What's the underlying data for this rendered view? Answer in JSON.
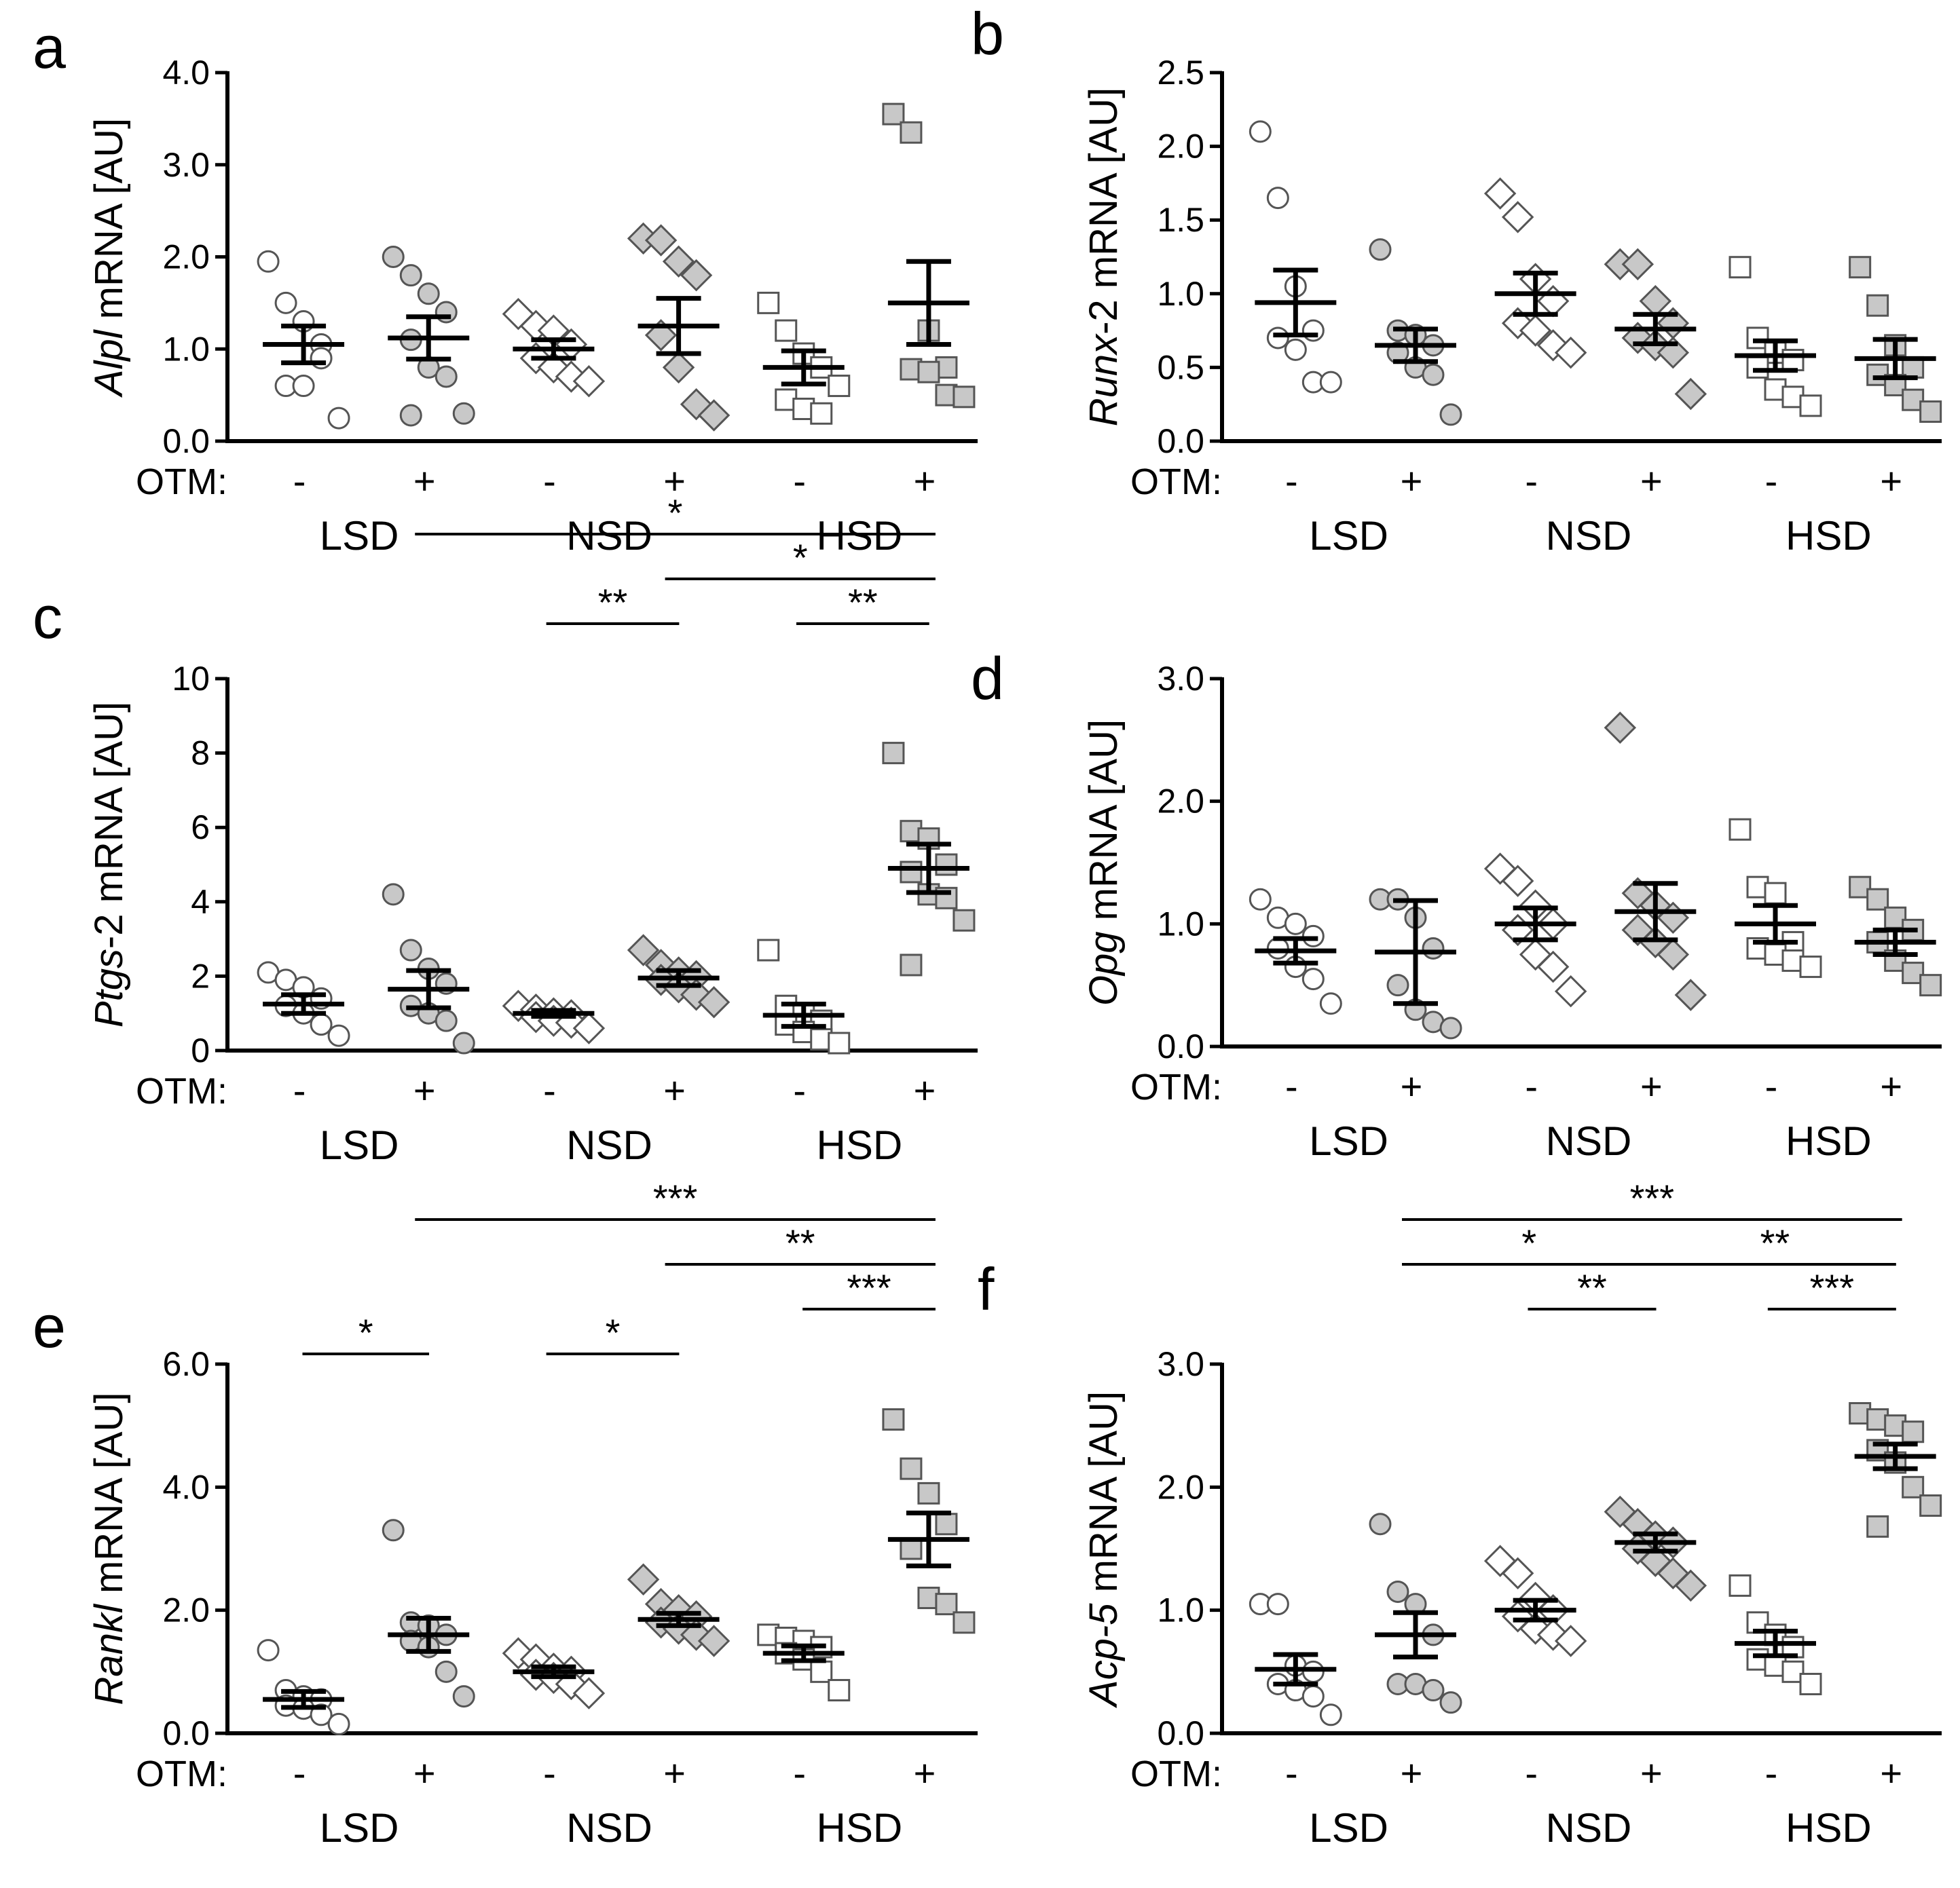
{
  "otm_label": "OTM:",
  "otm_signs": [
    "-",
    "+",
    "-",
    "+",
    "-",
    "+"
  ],
  "groups": [
    "LSD",
    "NSD",
    "HSD"
  ],
  "colors": {
    "open_fill": "#ffffff",
    "filled_fill": "#c8c8c8",
    "stroke": "#555555",
    "bar": "#000000"
  },
  "marker_by_group": [
    "circle",
    "diamond",
    "square"
  ],
  "chart_data": [
    {
      "id": "a",
      "type": "scatter",
      "letter": "a",
      "ylabel_italic": "Alpl",
      "ylabel_rest": " mRNA [AU]",
      "ylim": [
        0,
        4
      ],
      "yticks": [
        0,
        1,
        2,
        3,
        4
      ],
      "yticklabels": [
        "0.0",
        "1.0",
        "2.0",
        "3.0",
        "4.0"
      ],
      "series": [
        {
          "name": "LSD -",
          "points": [
            1.95,
            1.5,
            1.3,
            1.05,
            0.6,
            0.6,
            0.9,
            0.25
          ],
          "mean": 1.05,
          "sem": 0.2
        },
        {
          "name": "LSD +",
          "points": [
            2.0,
            1.8,
            1.6,
            1.4,
            1.1,
            0.8,
            0.7,
            0.3,
            0.28
          ],
          "mean": 1.12,
          "sem": 0.23
        },
        {
          "name": "NSD -",
          "points": [
            1.38,
            1.25,
            1.2,
            1.05,
            0.9,
            0.8,
            0.7,
            0.65
          ],
          "mean": 1.0,
          "sem": 0.1
        },
        {
          "name": "NSD +",
          "points": [
            2.2,
            2.18,
            1.95,
            1.8,
            1.15,
            0.8,
            0.4,
            0.28
          ],
          "mean": 1.25,
          "sem": 0.3
        },
        {
          "name": "HSD -",
          "points": [
            1.5,
            1.2,
            0.95,
            0.8,
            0.45,
            0.35,
            0.3,
            0.6
          ],
          "mean": 0.8,
          "sem": 0.18
        },
        {
          "name": "HSD +",
          "points": [
            3.55,
            3.35,
            1.2,
            0.8,
            0.78,
            0.75,
            0.5,
            0.48
          ],
          "mean": 1.5,
          "sem": 0.45
        }
      ],
      "sig": []
    },
    {
      "id": "b",
      "type": "scatter",
      "letter": "b",
      "ylabel_italic": "Runx",
      "ylabel_rest": "-2 mRNA [AU]",
      "ylim": [
        0,
        2.5
      ],
      "yticks": [
        0,
        0.5,
        1,
        1.5,
        2,
        2.5
      ],
      "yticklabels": [
        "0.0",
        "0.5",
        "1.0",
        "1.5",
        "2.0",
        "2.5"
      ],
      "series": [
        {
          "name": "LSD -",
          "points": [
            2.1,
            1.65,
            1.05,
            0.75,
            0.7,
            0.62,
            0.4,
            0.4
          ],
          "mean": 0.94,
          "sem": 0.22
        },
        {
          "name": "LSD +",
          "points": [
            1.3,
            0.75,
            0.72,
            0.65,
            0.6,
            0.5,
            0.45,
            0.18
          ],
          "mean": 0.65,
          "sem": 0.11
        },
        {
          "name": "NSD -",
          "points": [
            1.68,
            1.52,
            1.1,
            0.95,
            0.8,
            0.75,
            0.65,
            0.6
          ],
          "mean": 1.0,
          "sem": 0.14
        },
        {
          "name": "NSD +",
          "points": [
            1.2,
            1.2,
            0.95,
            0.8,
            0.7,
            0.65,
            0.6,
            0.32
          ],
          "mean": 0.76,
          "sem": 0.1
        },
        {
          "name": "HSD -",
          "points": [
            1.18,
            0.7,
            0.6,
            0.55,
            0.5,
            0.35,
            0.3,
            0.24
          ],
          "mean": 0.58,
          "sem": 0.1
        },
        {
          "name": "HSD +",
          "points": [
            1.18,
            0.92,
            0.65,
            0.5,
            0.45,
            0.38,
            0.28,
            0.2
          ],
          "mean": 0.56,
          "sem": 0.13
        }
      ],
      "sig": []
    },
    {
      "id": "c",
      "type": "scatter",
      "letter": "c",
      "ylabel_italic": "Ptgs",
      "ylabel_rest": "-2 mRNA [AU]",
      "ylim": [
        0,
        10
      ],
      "yticks": [
        0,
        2,
        4,
        6,
        8,
        10
      ],
      "yticklabels": [
        "0",
        "2",
        "4",
        "6",
        "8",
        "10"
      ],
      "series": [
        {
          "name": "LSD -",
          "points": [
            2.1,
            1.9,
            1.7,
            1.4,
            1.2,
            1.0,
            0.7,
            0.4
          ],
          "mean": 1.25,
          "sem": 0.25
        },
        {
          "name": "LSD +",
          "points": [
            4.2,
            2.7,
            2.2,
            1.8,
            1.2,
            1.0,
            0.8,
            0.2
          ],
          "mean": 1.65,
          "sem": 0.5
        },
        {
          "name": "NSD -",
          "points": [
            1.2,
            1.1,
            1.0,
            0.95,
            0.9,
            0.8,
            0.75,
            0.6
          ],
          "mean": 1.0,
          "sem": 0.08
        },
        {
          "name": "NSD +",
          "points": [
            2.7,
            2.3,
            2.1,
            2.0,
            1.9,
            1.7,
            1.5,
            1.3
          ],
          "mean": 1.95,
          "sem": 0.2
        },
        {
          "name": "HSD -",
          "points": [
            2.7,
            1.2,
            1.0,
            0.8,
            0.7,
            0.5,
            0.3,
            0.2
          ],
          "mean": 0.95,
          "sem": 0.3
        },
        {
          "name": "HSD +",
          "points": [
            8.0,
            5.9,
            5.7,
            5.0,
            4.8,
            4.2,
            4.1,
            3.5,
            2.3
          ],
          "mean": 4.9,
          "sem": 0.65
        }
      ],
      "sig": [
        {
          "from": 1,
          "to": 5,
          "label": "*",
          "level": 4
        },
        {
          "from": 3,
          "to": 5,
          "label": "*",
          "level": 3
        },
        {
          "from": 2.05,
          "to": 2.95,
          "label": "**",
          "level": 2
        },
        {
          "from": 4.05,
          "to": 4.95,
          "label": "**",
          "level": 2
        }
      ]
    },
    {
      "id": "d",
      "type": "scatter",
      "letter": "d",
      "ylabel_italic": "Opg",
      "ylabel_rest": " mRNA [AU]",
      "ylim": [
        0,
        3
      ],
      "yticks": [
        0,
        1,
        2,
        3
      ],
      "yticklabels": [
        "0.0",
        "1.0",
        "2.0",
        "3.0"
      ],
      "series": [
        {
          "name": "LSD -",
          "points": [
            1.2,
            1.05,
            1.0,
            0.9,
            0.8,
            0.65,
            0.55,
            0.35
          ],
          "mean": 0.78,
          "sem": 0.1
        },
        {
          "name": "LSD +",
          "points": [
            1.2,
            1.2,
            1.05,
            0.8,
            0.5,
            0.3,
            0.2,
            0.15
          ],
          "mean": 0.77,
          "sem": 0.42
        },
        {
          "name": "NSD -",
          "points": [
            1.45,
            1.35,
            1.15,
            1.0,
            0.95,
            0.75,
            0.65,
            0.45
          ],
          "mean": 1.0,
          "sem": 0.13
        },
        {
          "name": "NSD +",
          "points": [
            2.6,
            1.25,
            1.15,
            1.05,
            0.95,
            0.85,
            0.75,
            0.42
          ],
          "mean": 1.1,
          "sem": 0.23
        },
        {
          "name": "HSD -",
          "points": [
            1.77,
            1.3,
            1.25,
            0.85,
            0.8,
            0.75,
            0.7,
            0.65
          ],
          "mean": 1.0,
          "sem": 0.15
        },
        {
          "name": "HSD +",
          "points": [
            1.3,
            1.2,
            1.05,
            0.95,
            0.85,
            0.7,
            0.6,
            0.5
          ],
          "mean": 0.85,
          "sem": 0.1
        }
      ],
      "sig": []
    },
    {
      "id": "e",
      "type": "scatter",
      "letter": "e",
      "ylabel_italic": "Rankl",
      "ylabel_rest": " mRNA [AU]",
      "ylim": [
        0,
        6
      ],
      "yticks": [
        0,
        2,
        4,
        6
      ],
      "yticklabels": [
        "0.0",
        "2.0",
        "4.0",
        "6.0"
      ],
      "series": [
        {
          "name": "LSD -",
          "points": [
            1.35,
            0.7,
            0.6,
            0.55,
            0.45,
            0.4,
            0.3,
            0.15
          ],
          "mean": 0.55,
          "sem": 0.13
        },
        {
          "name": "LSD +",
          "points": [
            3.3,
            1.8,
            1.75,
            1.6,
            1.5,
            1.4,
            1.0,
            0.6
          ],
          "mean": 1.6,
          "sem": 0.27
        },
        {
          "name": "NSD -",
          "points": [
            1.3,
            1.2,
            1.05,
            1.0,
            0.95,
            0.9,
            0.8,
            0.65
          ],
          "mean": 1.0,
          "sem": 0.08
        },
        {
          "name": "NSD +",
          "points": [
            2.5,
            2.1,
            2.0,
            1.9,
            1.8,
            1.7,
            1.6,
            1.5
          ],
          "mean": 1.85,
          "sem": 0.1
        },
        {
          "name": "HSD -",
          "points": [
            1.6,
            1.55,
            1.5,
            1.4,
            1.3,
            1.2,
            1.0,
            0.7
          ],
          "mean": 1.3,
          "sem": 0.12
        },
        {
          "name": "HSD +",
          "points": [
            5.1,
            4.3,
            3.9,
            3.4,
            3.0,
            2.2,
            2.1,
            1.8
          ],
          "mean": 3.15,
          "sem": 0.43
        }
      ],
      "sig": [
        {
          "from": 1,
          "to": 5,
          "label": "***",
          "level": 4
        },
        {
          "from": 3,
          "to": 5,
          "label": "**",
          "level": 3
        },
        {
          "from": 4.1,
          "to": 5,
          "label": "***",
          "level": 2
        },
        {
          "from": 0.1,
          "to": 0.95,
          "label": "*",
          "level": 1
        },
        {
          "from": 2.05,
          "to": 2.95,
          "label": "*",
          "level": 1
        }
      ]
    },
    {
      "id": "f",
      "type": "scatter",
      "letter": "f",
      "ylabel_italic": "Acp-5",
      "ylabel_rest": " mRNA [AU]",
      "ylim": [
        0,
        3
      ],
      "yticks": [
        0,
        1,
        2,
        3
      ],
      "yticklabels": [
        "0.0",
        "1.0",
        "2.0",
        "3.0"
      ],
      "series": [
        {
          "name": "LSD -",
          "points": [
            1.05,
            1.05,
            0.55,
            0.5,
            0.4,
            0.35,
            0.3,
            0.15
          ],
          "mean": 0.52,
          "sem": 0.12
        },
        {
          "name": "LSD +",
          "points": [
            1.7,
            1.15,
            1.05,
            0.8,
            0.4,
            0.4,
            0.35,
            0.25
          ],
          "mean": 0.8,
          "sem": 0.18
        },
        {
          "name": "NSD -",
          "points": [
            1.4,
            1.3,
            1.1,
            1.0,
            0.95,
            0.85,
            0.8,
            0.75
          ],
          "mean": 1.0,
          "sem": 0.08
        },
        {
          "name": "NSD +",
          "points": [
            1.8,
            1.7,
            1.6,
            1.55,
            1.5,
            1.4,
            1.3,
            1.2
          ],
          "mean": 1.55,
          "sem": 0.07
        },
        {
          "name": "HSD -",
          "points": [
            1.2,
            0.9,
            0.8,
            0.7,
            0.6,
            0.55,
            0.5,
            0.4
          ],
          "mean": 0.73,
          "sem": 0.1
        },
        {
          "name": "HSD +",
          "points": [
            2.6,
            2.55,
            2.5,
            2.45,
            2.3,
            2.2,
            2.0,
            1.85,
            1.68
          ],
          "mean": 2.25,
          "sem": 0.1
        }
      ],
      "sig": [
        {
          "from": 1,
          "to": 5,
          "label": "***",
          "level": 4
        },
        {
          "from": 1,
          "to": 2.95,
          "label": "*",
          "level": 3
        },
        {
          "from": 3.1,
          "to": 4.95,
          "label": "**",
          "level": 3
        },
        {
          "from": 2.05,
          "to": 2.95,
          "label": "**",
          "level": 2
        },
        {
          "from": 4.05,
          "to": 4.95,
          "label": "***",
          "level": 2
        }
      ]
    }
  ]
}
